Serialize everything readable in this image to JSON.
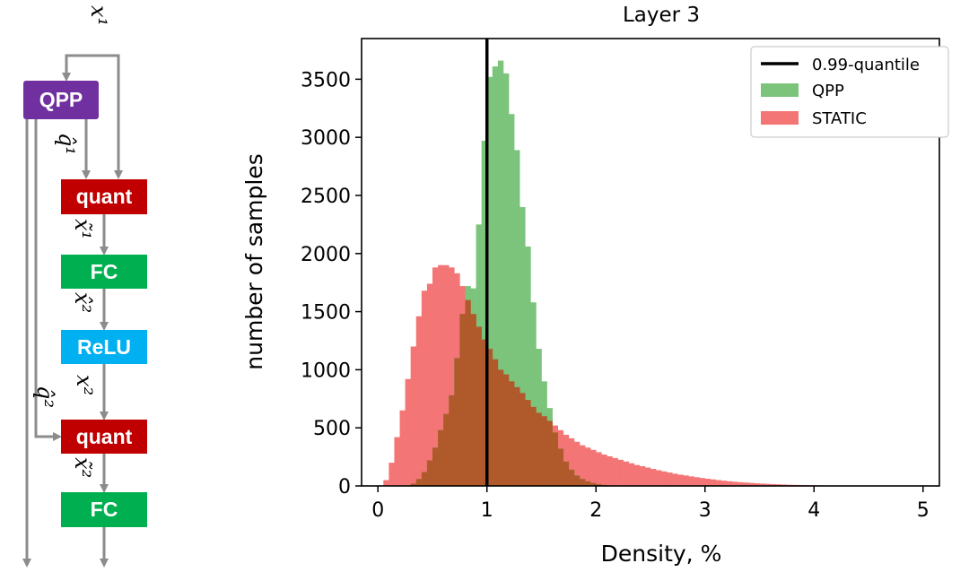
{
  "diagram": {
    "input_label": "x¹",
    "q1_label": "q̂¹",
    "q2_label": "q̂²",
    "xt1_label": "x̃¹",
    "xh2_label": "x̂²",
    "x2_label": "x²",
    "xt2_label": "x̃²",
    "boxes": {
      "qpp": "QPP",
      "quant1": "quant",
      "fc1": "FC",
      "relu": "ReLU",
      "quant2": "quant",
      "fc2": "FC"
    },
    "colors": {
      "qpp": "#7030a0",
      "quant": "#c00000",
      "fc": "#00b050",
      "relu": "#00b0f0",
      "arrow": "#8c8c8c"
    }
  },
  "chart_data": {
    "type": "histogram",
    "title": "Layer 3",
    "xlabel": "Density, %",
    "ylabel": "number of samples",
    "xlim": [
      -0.15,
      5.15
    ],
    "ylim": [
      0,
      3850
    ],
    "xticks": [
      0,
      1,
      2,
      3,
      4,
      5
    ],
    "yticks": [
      0,
      500,
      1000,
      1500,
      2000,
      2500,
      3000,
      3500
    ],
    "bin_width": 0.05,
    "legend_position": "top-right",
    "quantile_line": {
      "name": "0.99-quantile",
      "x": 1.0,
      "color": "#000000"
    },
    "series": [
      {
        "name": "QPP",
        "color": "#7cc47c",
        "bin_start": 0.3,
        "counts": [
          20,
          60,
          120,
          220,
          330,
          480,
          620,
          780,
          1100,
          1480,
          1720,
          1700,
          2250,
          2970,
          3520,
          3610,
          3660,
          3550,
          3200,
          2890,
          2400,
          2060,
          1580,
          1180,
          900,
          670,
          460,
          320,
          210,
          140,
          90,
          60,
          40,
          25,
          15,
          8,
          4
        ]
      },
      {
        "name": "STATIC",
        "color": "#f47575",
        "bin_start": 0.05,
        "counts": [
          50,
          200,
          420,
          650,
          920,
          1200,
          1460,
          1680,
          1740,
          1880,
          1900,
          1900,
          1880,
          1830,
          1720,
          1600,
          1480,
          1370,
          1260,
          1180,
          1090,
          1000,
          960,
          900,
          850,
          800,
          740,
          680,
          630,
          600,
          560,
          520,
          480,
          440,
          410,
          380,
          350,
          330,
          310,
          290,
          270,
          255,
          240,
          225,
          210,
          195,
          180,
          170,
          158,
          146,
          135,
          125,
          115,
          105,
          97,
          90,
          82,
          75,
          68,
          62,
          56,
          50,
          45,
          40,
          36,
          32,
          29,
          26,
          23,
          20,
          18,
          16,
          14,
          12,
          10,
          9,
          8,
          7,
          6,
          5,
          4,
          3
        ]
      }
    ]
  }
}
